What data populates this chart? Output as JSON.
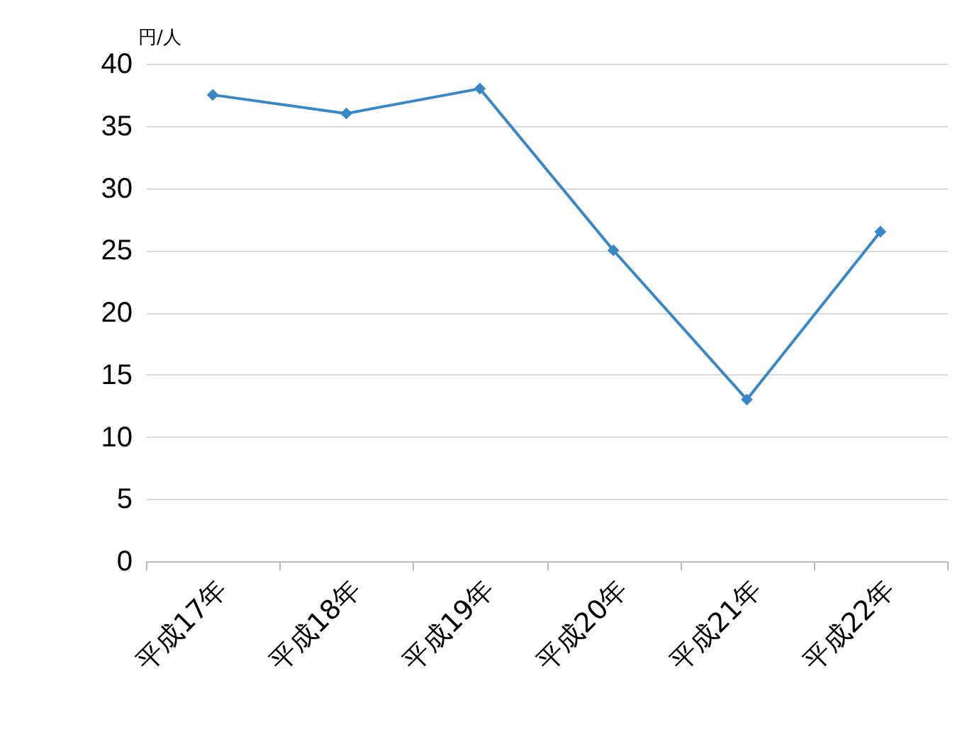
{
  "chart_data": {
    "type": "line",
    "ylabel": "円/人",
    "categories": [
      "平成17年",
      "平成18年",
      "平成19年",
      "平成20年",
      "平成21年",
      "平成22年"
    ],
    "series": [
      {
        "color": "#3a87c8",
        "values": [
          37.5,
          36,
          38,
          25,
          13,
          26.5
        ]
      }
    ],
    "ylim": [
      0,
      40
    ],
    "yticks": [
      0,
      5,
      10,
      15,
      20,
      25,
      30,
      35,
      40
    ],
    "grid": "y",
    "marker": "diamond",
    "line_style": "solid",
    "legend": false
  }
}
